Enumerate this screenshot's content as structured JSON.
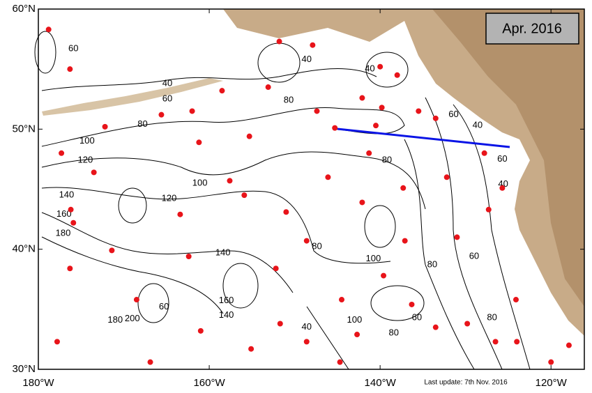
{
  "map": {
    "title": "Apr. 2016",
    "footer": "Last update: 7th Nov. 2016",
    "lon_lim": [
      -180,
      -116.1
    ],
    "lat_lim": [
      30,
      60
    ],
    "lon_ticks": [
      {
        "value": -180,
        "label": "180°W"
      },
      {
        "value": -160,
        "label": "160°W"
      },
      {
        "value": -140,
        "label": "140°W"
      },
      {
        "value": -120,
        "label": "120°W"
      }
    ],
    "lat_ticks": [
      {
        "value": 30,
        "label": "30°N"
      },
      {
        "value": 40,
        "label": "40°N"
      },
      {
        "value": 50,
        "label": "50°N"
      },
      {
        "value": 60,
        "label": "60°N"
      }
    ],
    "float_color": "#e8141a",
    "floats": [
      [
        -178.8,
        58.3
      ],
      [
        -176.3,
        55.0
      ],
      [
        -172.2,
        50.2
      ],
      [
        -177.3,
        48.0
      ],
      [
        -173.5,
        46.4
      ],
      [
        -176.2,
        43.3
      ],
      [
        -175.9,
        42.2
      ],
      [
        -176.3,
        38.4
      ],
      [
        -177.8,
        32.3
      ],
      [
        -168.5,
        35.8
      ],
      [
        -166.9,
        30.6
      ],
      [
        -165.6,
        51.2
      ],
      [
        -162.0,
        51.5
      ],
      [
        -161.2,
        48.9
      ],
      [
        -163.4,
        42.9
      ],
      [
        -162.4,
        39.4
      ],
      [
        -161.0,
        33.2
      ],
      [
        -158.5,
        53.2
      ],
      [
        -155.3,
        49.4
      ],
      [
        -151.8,
        57.3
      ],
      [
        -153.1,
        53.5
      ],
      [
        -155.9,
        44.5
      ],
      [
        -151.0,
        43.1
      ],
      [
        -152.2,
        38.4
      ],
      [
        -151.7,
        33.8
      ],
      [
        -148.6,
        32.3
      ],
      [
        -147.4,
        51.5
      ],
      [
        -147.9,
        57.0
      ],
      [
        -145.3,
        50.1
      ],
      [
        -146.1,
        46.0
      ],
      [
        -148.6,
        40.7
      ],
      [
        -144.5,
        35.8
      ],
      [
        -142.1,
        52.6
      ],
      [
        -140.0,
        55.2
      ],
      [
        -140.5,
        50.3
      ],
      [
        -141.3,
        48.0
      ],
      [
        -142.1,
        43.9
      ],
      [
        -139.8,
        51.8
      ],
      [
        -138.0,
        54.5
      ],
      [
        -137.3,
        45.1
      ],
      [
        -137.1,
        40.7
      ],
      [
        -139.6,
        37.8
      ],
      [
        -136.3,
        35.4
      ],
      [
        -142.7,
        32.9
      ],
      [
        -135.5,
        51.5
      ],
      [
        -133.5,
        50.9
      ],
      [
        -132.2,
        46.0
      ],
      [
        -131.0,
        41.0
      ],
      [
        -127.3,
        43.3
      ],
      [
        -127.8,
        48.0
      ],
      [
        -125.7,
        45.1
      ],
      [
        -124.1,
        35.8
      ],
      [
        -126.5,
        32.3
      ],
      [
        -124.0,
        32.3
      ],
      [
        -120.0,
        30.6
      ],
      [
        -117.9,
        32.0
      ],
      [
        -129.8,
        33.8
      ],
      [
        -133.5,
        33.5
      ],
      [
        -144.7,
        30.6
      ],
      [
        -155.1,
        31.7
      ],
      [
        -171.4,
        39.9
      ],
      [
        -157.6,
        45.7
      ]
    ],
    "contour_labels": [
      {
        "text": "40",
        "lon": -164.9,
        "lat": 53.8
      },
      {
        "text": "60",
        "lon": -164.9,
        "lat": 52.5
      },
      {
        "text": "80",
        "lon": -167.8,
        "lat": 50.4
      },
      {
        "text": "100",
        "lon": -174.3,
        "lat": 49.0
      },
      {
        "text": "120",
        "lon": -174.5,
        "lat": 47.4
      },
      {
        "text": "140",
        "lon": -176.7,
        "lat": 44.5
      },
      {
        "text": "160",
        "lon": -177.0,
        "lat": 42.9
      },
      {
        "text": "180",
        "lon": -177.1,
        "lat": 41.3
      },
      {
        "text": "100",
        "lon": -161.1,
        "lat": 45.5
      },
      {
        "text": "120",
        "lon": -164.7,
        "lat": 44.2
      },
      {
        "text": "140",
        "lon": -158.4,
        "lat": 39.7
      },
      {
        "text": "160",
        "lon": -158.0,
        "lat": 35.7
      },
      {
        "text": "140",
        "lon": -158.0,
        "lat": 34.5
      },
      {
        "text": "200",
        "lon": -169.0,
        "lat": 34.2
      },
      {
        "text": "180",
        "lon": -171.0,
        "lat": 34.1
      },
      {
        "text": "60",
        "lon": -165.3,
        "lat": 35.2
      },
      {
        "text": "40",
        "lon": -148.6,
        "lat": 55.8
      },
      {
        "text": "80",
        "lon": -150.7,
        "lat": 52.4
      },
      {
        "text": "40",
        "lon": -141.2,
        "lat": 55.0
      },
      {
        "text": "80",
        "lon": -139.2,
        "lat": 47.4
      },
      {
        "text": "80",
        "lon": -147.4,
        "lat": 40.2
      },
      {
        "text": "100",
        "lon": -140.8,
        "lat": 39.2
      },
      {
        "text": "80",
        "lon": -133.9,
        "lat": 38.7
      },
      {
        "text": "60",
        "lon": -135.7,
        "lat": 34.3
      },
      {
        "text": "80",
        "lon": -138.4,
        "lat": 33.0
      },
      {
        "text": "100",
        "lon": -143.0,
        "lat": 34.1
      },
      {
        "text": "60",
        "lon": -131.4,
        "lat": 51.2
      },
      {
        "text": "40",
        "lon": -128.6,
        "lat": 50.3
      },
      {
        "text": "60",
        "lon": -125.7,
        "lat": 47.5
      },
      {
        "text": "40",
        "lon": -125.6,
        "lat": 45.4
      },
      {
        "text": "60",
        "lon": -129.0,
        "lat": 39.4
      },
      {
        "text": "80",
        "lon": -126.9,
        "lat": 34.3
      },
      {
        "text": "60",
        "lon": -175.9,
        "lat": 56.7
      },
      {
        "text": "40",
        "lon": -148.6,
        "lat": 33.5
      }
    ]
  }
}
